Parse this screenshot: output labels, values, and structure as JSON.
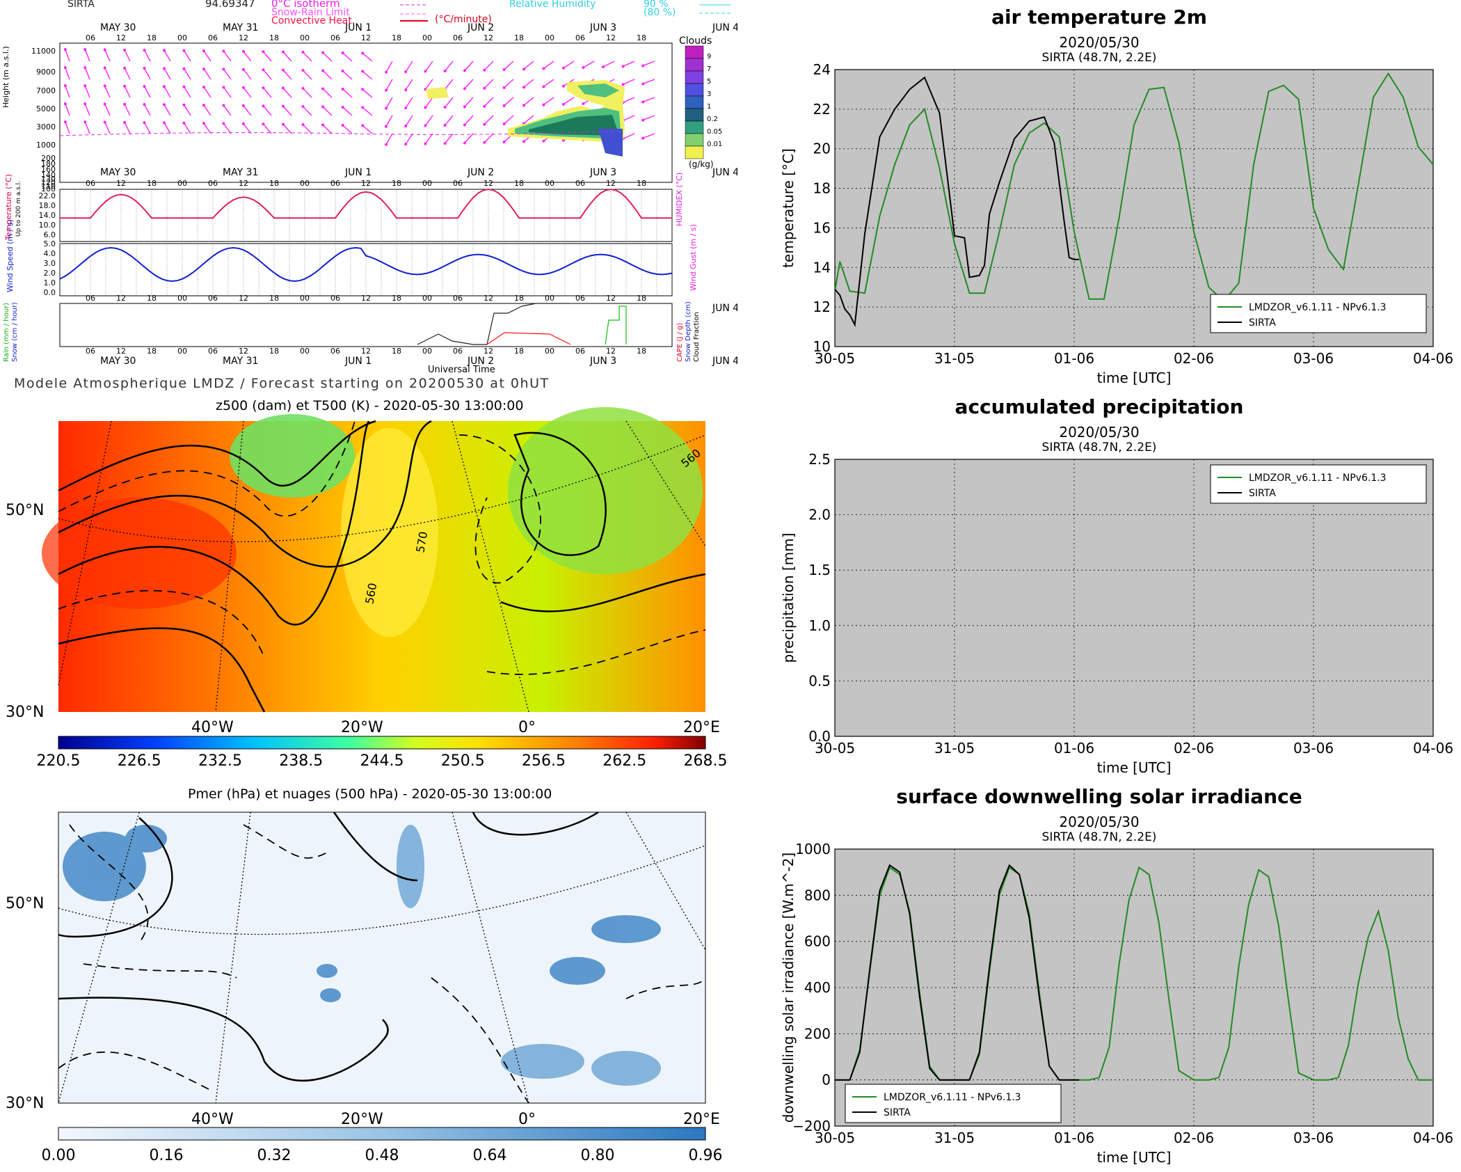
{
  "meteogram": {
    "station": "SIRTA",
    "code": "94.69347",
    "legend": {
      "isotherm": "0°C isotherm",
      "snow_rain": "Snow-Rain Limit",
      "convective": "Convective Heat.",
      "conv_unit": "(°C/minute)",
      "rh": "Relative Humidity",
      "rh90": "90 %",
      "rh80": "(80 %)"
    },
    "days": [
      "MAY 30",
      "MAY 31",
      "JUN 1",
      "JUN 2",
      "JUN 3",
      "JUN 4"
    ],
    "hours": [
      "06",
      "12",
      "18",
      "00"
    ],
    "height_label": "Height (m a.s.l.)",
    "height_ticks": [
      "11000",
      "9000",
      "7000",
      "5000",
      "3000",
      "1000",
      "200",
      "180",
      "160",
      "140",
      "130",
      "120",
      "110",
      "100"
    ],
    "clouds_title": "Clouds",
    "clouds_ticks": [
      "9",
      "7",
      "5",
      "3",
      "1",
      "0.2",
      "0.05",
      "0.01"
    ],
    "clouds_unit": "(g/kg)",
    "temp_label": "Temperature (°C)",
    "temp_sub": "Up to 200 m a.s.l.",
    "humidex_label": "HUMIDEX (°C)",
    "temp_ticks": [
      "22.0",
      "18.0",
      "14.0",
      "10.0",
      "6.0"
    ],
    "wind_label": "Wind Speed (m / s)",
    "gust_label": "Wind Gust (m / s)",
    "wind_ticks": [
      "5.0",
      "4.0",
      "3.0",
      "2.0",
      "1.0",
      "0.0"
    ],
    "rain_label": "Rain (mm / hour)",
    "snow_label": "Snow (cm / hour)",
    "cape_label": "CAPE (J / g)",
    "snowdepth_label": "Snow Depth (cm)",
    "cloudfrac_label": "Cloud Fraction",
    "xlabel": "Universal Time",
    "footer": "Modele Atmospherique LMDZ / Forecast starting on 20200530 at 0hUT"
  },
  "map1": {
    "title": "z500 (dam) et T500 (K) - 2020-05-30 13:00:00",
    "lat_labels": [
      "50°N",
      "30°N"
    ],
    "lon_labels": [
      "40°W",
      "20°W",
      "0°",
      "20°E"
    ],
    "contour_labels": [
      "560",
      "570",
      "560"
    ],
    "colorbar": [
      "220.5",
      "226.5",
      "232.5",
      "238.5",
      "244.5",
      "250.5",
      "256.5",
      "262.5",
      "268.5"
    ]
  },
  "map2": {
    "title": "Pmer (hPa) et nuages (500 hPa) - 2020-05-30 13:00:00",
    "lat_labels": [
      "50°N",
      "30°N"
    ],
    "lon_labels": [
      "40°W",
      "20°W",
      "0°",
      "20°E"
    ],
    "colorbar": [
      "0.00",
      "0.16",
      "0.32",
      "0.48",
      "0.64",
      "0.80",
      "0.96"
    ]
  },
  "chart_data": [
    {
      "type": "line",
      "title": "air temperature 2m",
      "subtitle": "2020/05/30",
      "subtitle2": "SIRTA (48.7N, 2.2E)",
      "xlabel": "time [UTC]",
      "ylabel": "temperature [°C]",
      "xticks": [
        "30-05",
        "31-05",
        "01-06",
        "02-06",
        "03-06",
        "04-06"
      ],
      "xlim": [
        0,
        120
      ],
      "ylim": [
        10,
        24
      ],
      "yticks": [
        "10",
        "12",
        "14",
        "16",
        "18",
        "20",
        "22",
        "24"
      ],
      "legend": [
        "LMDZOR_v6.1.11 - NPv6.1.3",
        "SIRTA"
      ],
      "series": [
        {
          "name": "LMDZOR_v6.1.11 - NPv6.1.3",
          "color": "#228b22",
          "x": [
            0,
            1,
            3,
            6,
            9,
            12,
            15,
            18,
            21,
            24,
            27,
            30,
            33,
            36,
            39,
            42,
            45,
            48,
            51,
            54,
            57,
            60,
            63,
            66,
            69,
            72,
            75,
            78,
            81,
            84,
            87,
            90,
            93,
            96,
            99,
            102,
            105,
            108,
            111,
            114,
            117,
            120
          ],
          "y": [
            12.8,
            14.3,
            12.8,
            12.7,
            16.6,
            19.2,
            21.2,
            22.0,
            19.0,
            15.2,
            12.7,
            12.7,
            15.8,
            19.2,
            20.8,
            21.3,
            20.6,
            15.8,
            12.4,
            12.4,
            16.5,
            21.2,
            23.0,
            23.1,
            20.3,
            15.8,
            13.0,
            12.3,
            13.2,
            19.2,
            22.9,
            23.2,
            22.5,
            17.0,
            14.9,
            13.9,
            18.2,
            22.6,
            23.8,
            22.6,
            20.1,
            19.2
          ]
        },
        {
          "name": "SIRTA",
          "color": "#000000",
          "x": [
            0,
            1,
            2,
            3,
            4,
            6,
            9,
            12,
            15,
            18,
            21,
            24,
            26,
            27,
            29,
            30,
            31,
            33,
            36,
            39,
            42,
            44,
            46,
            47,
            48,
            49
          ],
          "y": [
            12.9,
            12.6,
            11.9,
            11.6,
            11.1,
            15.7,
            20.6,
            22.0,
            23.0,
            23.6,
            21.8,
            15.6,
            15.5,
            13.5,
            13.6,
            14.1,
            16.7,
            18.3,
            20.5,
            21.4,
            21.6,
            20.3,
            16.3,
            14.5,
            14.4,
            14.4
          ]
        }
      ]
    },
    {
      "type": "line",
      "title": "accumulated precipitation",
      "subtitle": "2020/05/30",
      "subtitle2": "SIRTA (48.7N, 2.2E)",
      "xlabel": "time [UTC]",
      "ylabel": "precipitation [mm]",
      "xticks": [
        "30-05",
        "31-05",
        "01-06",
        "02-06",
        "03-06",
        "04-06"
      ],
      "xlim": [
        0,
        120
      ],
      "ylim": [
        0,
        2.5
      ],
      "yticks": [
        "0.0",
        "0.5",
        "1.0",
        "1.5",
        "2.0",
        "2.5"
      ],
      "legend": [
        "LMDZOR_v6.1.11 - NPv6.1.3",
        "SIRTA"
      ],
      "series": [
        {
          "name": "LMDZOR_v6.1.11 - NPv6.1.3",
          "color": "#228b22",
          "x": [],
          "y": []
        },
        {
          "name": "SIRTA",
          "color": "#000000",
          "x": [],
          "y": []
        }
      ]
    },
    {
      "type": "line",
      "title": "surface downwelling solar irradiance",
      "subtitle": "2020/05/30",
      "subtitle2": "SIRTA (48.7N, 2.2E)",
      "xlabel": "time [UTC]",
      "ylabel": "downwelling solar irradiance [W.m^-2]",
      "xticks": [
        "30-05",
        "31-05",
        "01-06",
        "02-06",
        "03-06",
        "04-06"
      ],
      "xlim": [
        0,
        120
      ],
      "ylim": [
        -200,
        1000
      ],
      "yticks": [
        "−200",
        "0",
        "200",
        "400",
        "600",
        "800",
        "1000"
      ],
      "legend": [
        "LMDZOR_v6.1.11 - NPv6.1.3",
        "SIRTA"
      ],
      "series": [
        {
          "name": "LMDZOR_v6.1.11 - NPv6.1.3",
          "color": "#228b22",
          "x": [
            0,
            3,
            5,
            7,
            9,
            11,
            13,
            15,
            17,
            19,
            21,
            24,
            27,
            29,
            31,
            33,
            35,
            37,
            39,
            41,
            43,
            45,
            48,
            51,
            53,
            55,
            57,
            59,
            61,
            63,
            65,
            67,
            69,
            72,
            75,
            77,
            79,
            81,
            83,
            85,
            87,
            89,
            91,
            93,
            96,
            99,
            101,
            103,
            105,
            107,
            109,
            111,
            113,
            115,
            117,
            120
          ],
          "y": [
            0,
            0,
            130,
            470,
            800,
            920,
            890,
            730,
            380,
            60,
            0,
            0,
            0,
            110,
            470,
            800,
            920,
            890,
            720,
            380,
            60,
            0,
            0,
            0,
            10,
            140,
            500,
            780,
            920,
            890,
            680,
            350,
            40,
            0,
            0,
            10,
            140,
            490,
            760,
            910,
            880,
            670,
            340,
            30,
            0,
            0,
            10,
            150,
            420,
            620,
            730,
            560,
            270,
            90,
            0,
            0
          ]
        },
        {
          "name": "SIRTA",
          "color": "#000000",
          "x": [
            0,
            3,
            5,
            7,
            9,
            11,
            13,
            15,
            17,
            19,
            21,
            24,
            27,
            29,
            31,
            33,
            35,
            37,
            39,
            41,
            43,
            45,
            47,
            49
          ],
          "y": [
            0,
            0,
            120,
            480,
            820,
            930,
            900,
            720,
            360,
            50,
            0,
            0,
            0,
            120,
            490,
            820,
            930,
            890,
            700,
            360,
            60,
            0,
            0,
            0
          ]
        }
      ]
    }
  ]
}
